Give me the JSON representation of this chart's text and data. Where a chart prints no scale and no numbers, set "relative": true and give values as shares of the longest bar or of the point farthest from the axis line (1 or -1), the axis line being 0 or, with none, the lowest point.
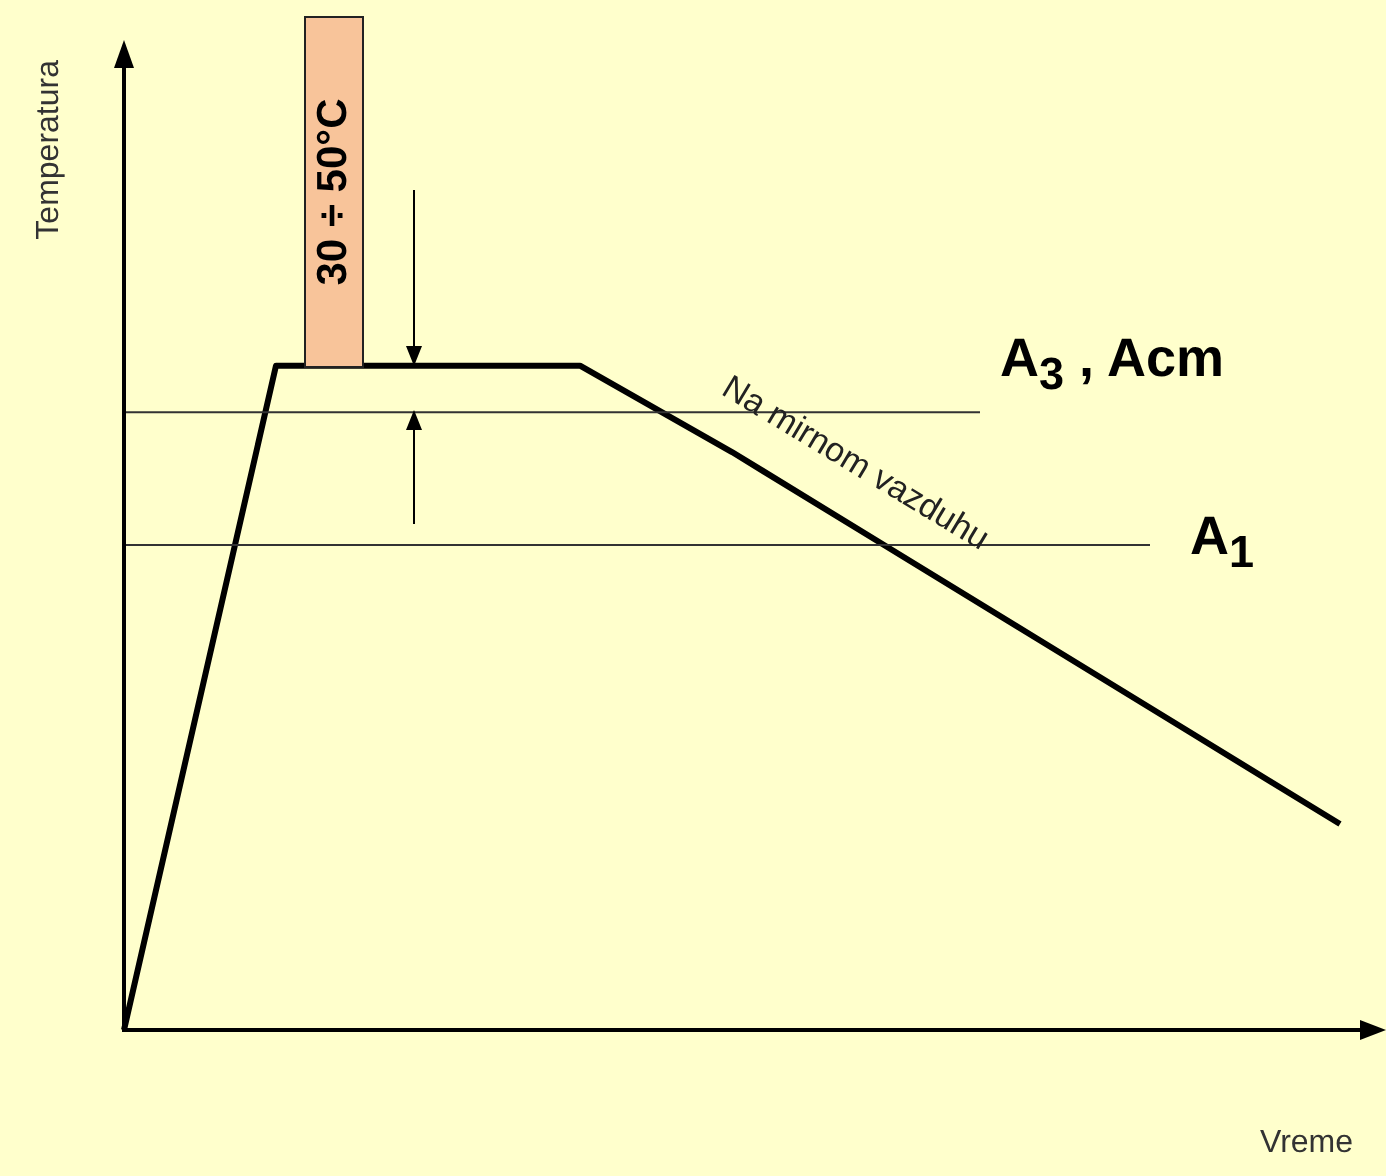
{
  "chart_data": {
    "type": "line",
    "relative": true,
    "xlabel": "Vreme",
    "ylabel": "Temperatura",
    "categories": [
      null,
      null,
      null,
      null,
      null,
      null,
      null,
      null,
      null
    ],
    "series": [
      {
        "color": "#000000",
        "values": [
          0,
          1,
          1,
          1,
          0.87,
          0.73,
          0.59,
          0.45,
          0.31
        ]
      }
    ],
    "ref_lines": [
      {
        "axis": "y",
        "value": 0.93,
        "label": "A$_{3}$ , Acm",
        "color": "#333333"
      },
      {
        "axis": "y",
        "value": 0.73,
        "label": "A$_{1}$",
        "color": "#333333"
      }
    ],
    "annotations": [
      "Na mirnom vazduhu",
      "30 ÷ 50°C"
    ],
    "marker": "none",
    "line_style": "solid",
    "grid": false,
    "legend": false,
    "tick_labels": false
  }
}
